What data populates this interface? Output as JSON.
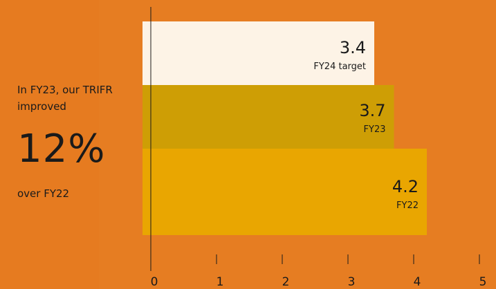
{
  "summary": {
    "intro": "In FY23, our TRIFR improved",
    "percent": "12%",
    "outro": "over FY22"
  },
  "colors": {
    "background": "#e67d22",
    "fy24_target": "#fdf3e6",
    "fy23": "#c9a300",
    "fy22": "#e8a700"
  },
  "chart_data": {
    "type": "bar",
    "orientation": "horizontal",
    "categories": [
      "FY24 target",
      "FY23",
      "FY22"
    ],
    "values": [
      3.4,
      3.7,
      4.2
    ],
    "xlim": [
      0,
      5
    ],
    "xticks": [
      0,
      1,
      2,
      3,
      4,
      5
    ],
    "grid": false
  }
}
